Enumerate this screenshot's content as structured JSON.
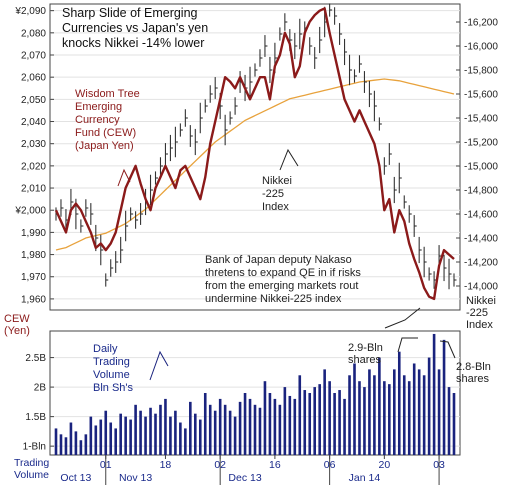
{
  "chart_data": {
    "type": "line",
    "title": "Sharp Slide of Emerging Currencies vs Japan's yen knocks Nikkei -14% lower",
    "title_lines": [
      "Sharp Slide of Emerging",
      "Currencies vs Japan's yen",
      "knocks Nikkei -14% lower"
    ],
    "left_axis": {
      "label_lines": [
        "CEW",
        "(Yen)"
      ],
      "ticks": [
        "¥2,090",
        "2,080",
        "2,070",
        "2,060",
        "2,050",
        "2,040",
        "2,030",
        "2,020",
        "2,010",
        "¥2,000",
        "1,990",
        "1,980",
        "1,970",
        "1,960"
      ],
      "values": [
        2090,
        2080,
        2070,
        2060,
        2050,
        2040,
        2030,
        2020,
        2010,
        2000,
        1990,
        1980,
        1970,
        1960
      ],
      "ylim": [
        1955,
        2093
      ]
    },
    "right_axis": {
      "label_lines": [
        "Nikkei",
        "-225",
        "Index"
      ],
      "ticks": [
        "-16,200",
        "-16,000",
        "-15,800",
        "-15,600",
        "-15,400",
        "-15,200",
        "-15,000",
        "-14,800",
        "-14,600",
        "-14,400",
        "-14,200",
        "-14,000"
      ],
      "values": [
        16200,
        16000,
        15800,
        15600,
        15400,
        15200,
        15000,
        14800,
        14600,
        14400,
        14200,
        14000
      ],
      "ylim": [
        13800,
        16350
      ]
    },
    "volume_axis": {
      "label_lines": [
        "Trading",
        "Volume"
      ],
      "ticks": [
        "2.5B",
        "2B",
        "1.5B",
        "1-Bln"
      ],
      "values": [
        2.5,
        2.0,
        1.5,
        1.0
      ],
      "ylim": [
        0.85,
        2.95
      ]
    },
    "x_axis": {
      "day_ticks": [
        "01",
        "18",
        "02",
        "16",
        "06",
        "20",
        "03"
      ],
      "day_tick_index": [
        10,
        22,
        33,
        44,
        55,
        66,
        77
      ],
      "month_labels": [
        "Oct 13",
        "Nov 13",
        "Dec 13",
        "Jan 14"
      ],
      "month_label_index": [
        4,
        16,
        38,
        62
      ],
      "month_separator_index": [
        10,
        33,
        55,
        77
      ]
    },
    "series": [
      {
        "name": "Wisdom Tree Emerging Currency Fund (CEW) (Japan Yen)",
        "axis": "left",
        "color": "#8b1a1a",
        "values": [
          2000,
          1995,
          1990,
          2000,
          2003,
          2000,
          1995,
          1990,
          1983,
          1985,
          1982,
          1985,
          1990,
          2000,
          2010,
          2015,
          2020,
          2012,
          2005,
          2000,
          2010,
          2015,
          2020,
          2015,
          2010,
          2018,
          2020,
          2015,
          2010,
          2005,
          2015,
          2030,
          2040,
          2050,
          2060,
          2058,
          2055,
          2060,
          2055,
          2050,
          2055,
          2060,
          2060,
          2050,
          2065,
          2070,
          2080,
          2075,
          2060,
          2065,
          2080,
          2085,
          2088,
          2090,
          2091,
          2080,
          2070,
          2060,
          2050,
          2045,
          2040,
          2045,
          2040,
          2035,
          2030,
          2020,
          2000,
          2005,
          1990,
          2000,
          1995,
          1985,
          1978,
          1972,
          1965,
          1961,
          1960,
          1975,
          1982,
          1980,
          1978
        ]
      },
      {
        "name": "Nikkei-225 Index",
        "axis": "right",
        "color": "#333333",
        "values": [
          14600,
          14650,
          14550,
          14700,
          14600,
          14500,
          14650,
          14600,
          14400,
          14300,
          14050,
          14150,
          14200,
          14300,
          14500,
          14600,
          14550,
          14600,
          14700,
          14800,
          14900,
          15000,
          15100,
          15150,
          15200,
          15300,
          15400,
          15250,
          15200,
          15400,
          15500,
          15600,
          15650,
          15500,
          15300,
          15400,
          15500,
          15700,
          15650,
          15700,
          15800,
          15900,
          16000,
          15800,
          15900,
          16100,
          16200,
          16050,
          16000,
          16100,
          16150,
          16000,
          15900,
          16050,
          16200,
          16300,
          16250,
          16100,
          15950,
          15800,
          15750,
          15850,
          15700,
          15600,
          15500,
          15350,
          15000,
          15100,
          14800,
          14900,
          14700,
          14600,
          14500,
          14300,
          14200,
          14100,
          14050,
          14250,
          14150,
          14100,
          14050
        ]
      },
      {
        "name": "moving average",
        "axis": "right",
        "color": "#e8a23c",
        "values": [
          14300,
          14310,
          14320,
          14340,
          14360,
          14380,
          14400,
          14410,
          14420,
          14430,
          14440,
          14460,
          14480,
          14500,
          14520,
          14550,
          14580,
          14610,
          14640,
          14680,
          14720,
          14760,
          14800,
          14840,
          14880,
          14920,
          14960,
          15000,
          15040,
          15080,
          15120,
          15160,
          15200,
          15230,
          15260,
          15290,
          15320,
          15350,
          15380,
          15400,
          15420,
          15440,
          15460,
          15480,
          15500,
          15520,
          15540,
          15560,
          15570,
          15580,
          15590,
          15600,
          15610,
          15620,
          15630,
          15640,
          15650,
          15660,
          15670,
          15680,
          15690,
          15700,
          15705,
          15710,
          15715,
          15720,
          15725,
          15720,
          15715,
          15710,
          15700,
          15690,
          15680,
          15670,
          15660,
          15650,
          15640,
          15630,
          15620,
          15610,
          15600
        ]
      },
      {
        "name": "Daily Trading Volume Bln Sh's",
        "axis": "volume",
        "color": "#1a237e",
        "type": "bar",
        "values": [
          1.3,
          1.2,
          1.15,
          1.4,
          1.25,
          1.1,
          1.2,
          1.5,
          1.35,
          1.45,
          1.6,
          1.4,
          1.3,
          1.55,
          1.5,
          1.45,
          1.7,
          1.6,
          1.5,
          1.65,
          1.55,
          1.7,
          1.8,
          1.5,
          1.6,
          1.4,
          1.3,
          1.75,
          1.55,
          1.45,
          1.9,
          1.7,
          1.6,
          1.8,
          1.7,
          1.6,
          1.5,
          1.75,
          1.9,
          1.8,
          1.7,
          1.65,
          2.1,
          1.9,
          1.8,
          1.7,
          2.0,
          1.85,
          1.8,
          2.2,
          1.95,
          1.9,
          2.0,
          2.05,
          2.3,
          2.1,
          1.9,
          1.95,
          1.8,
          2.2,
          2.4,
          2.1,
          2.0,
          2.3,
          2.2,
          2.5,
          2.1,
          2.05,
          2.3,
          2.6,
          2.2,
          2.1,
          2.4,
          2.3,
          2.2,
          2.5,
          2.9,
          2.3,
          2.8,
          2.0,
          1.9
        ]
      }
    ],
    "annotations": {
      "cew_lines": [
        "Wisdom Tree",
        "Emerging",
        "Currency",
        "Fund (CEW)",
        "(Japan Yen)"
      ],
      "nikkei_lines": [
        "Nikkei",
        "-225",
        "Index"
      ],
      "boj_lines": [
        "Bank of Japan deputy Nakaso",
        "thretens to expand QE in if risks",
        "from the emerging markets rout",
        "undermine Nikkei-225 index"
      ],
      "volume_lines": [
        "Daily",
        "Trading",
        "Volume",
        "Bln Sh's"
      ],
      "peak1_lines": [
        "2.9-Bln",
        "shares"
      ],
      "peak2_lines": [
        "2.8-Bln",
        "shares"
      ]
    }
  }
}
